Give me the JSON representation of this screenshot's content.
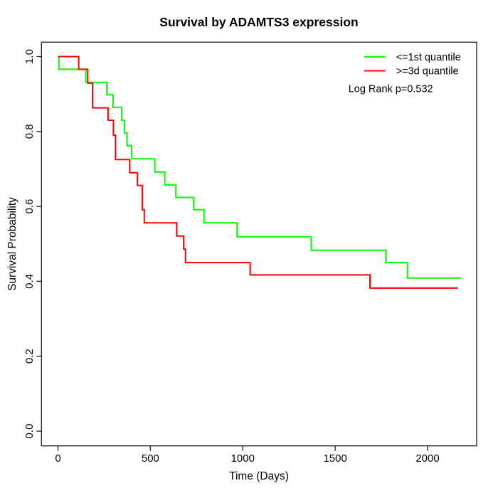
{
  "title": "Survival by ADAMTS3 expression",
  "x_axis": {
    "label": "Time (Days)",
    "tick_labels": [
      "0",
      "500",
      "1000",
      "1500",
      "2000"
    ]
  },
  "y_axis": {
    "label": "Survival Probability",
    "tick_labels": [
      "0.0",
      "0.2",
      "0.4",
      "0.6",
      "0.8",
      "1.0"
    ]
  },
  "legend": {
    "entries": [
      {
        "label": "<=1st quantile",
        "color": "#00ff00"
      },
      {
        "label": ">=3d quantile",
        "color": "#ff0000"
      }
    ],
    "stat_note": "Log Rank p=0.532"
  },
  "chart_data": {
    "type": "line",
    "variant": "kaplan-meier-step",
    "title": "Survival by ADAMTS3 expression",
    "xlabel": "Time (Days)",
    "ylabel": "Survival Probability",
    "xlim": [
      -90,
      2266
    ],
    "ylim": [
      -0.04,
      1.04
    ],
    "x_ticks": [
      0,
      500,
      1000,
      1500,
      2000
    ],
    "y_ticks": [
      0.0,
      0.2,
      0.4,
      0.6,
      0.8,
      1.0
    ],
    "grid": false,
    "legend_position": "top-right",
    "annotations": [
      "Log Rank p=0.532"
    ],
    "series": [
      {
        "name": "<=1st quantile",
        "color": "#00ff00",
        "line_width": 2,
        "steps": [
          [
            0,
            1.0
          ],
          [
            5,
            0.966
          ],
          [
            150,
            0.931
          ],
          [
            264,
            0.898
          ],
          [
            298,
            0.864
          ],
          [
            345,
            0.83
          ],
          [
            360,
            0.796
          ],
          [
            373,
            0.762
          ],
          [
            398,
            0.727
          ],
          [
            524,
            0.692
          ],
          [
            578,
            0.657
          ],
          [
            638,
            0.624
          ],
          [
            733,
            0.591
          ],
          [
            790,
            0.556
          ],
          [
            969,
            0.519
          ],
          [
            1370,
            0.483
          ],
          [
            1774,
            0.45
          ],
          [
            1891,
            0.409
          ]
        ],
        "end_time": 2182
      },
      {
        "name": ">=3d quantile",
        "color": "#ff0000",
        "line_width": 2,
        "steps": [
          [
            0,
            1.0
          ],
          [
            112,
            0.966
          ],
          [
            161,
            0.929
          ],
          [
            187,
            0.863
          ],
          [
            271,
            0.83
          ],
          [
            300,
            0.79
          ],
          [
            311,
            0.725
          ],
          [
            388,
            0.69
          ],
          [
            430,
            0.656
          ],
          [
            456,
            0.591
          ],
          [
            467,
            0.556
          ],
          [
            642,
            0.521
          ],
          [
            680,
            0.486
          ],
          [
            690,
            0.45
          ],
          [
            1040,
            0.417
          ],
          [
            1688,
            0.382
          ]
        ],
        "end_time": 2163
      }
    ]
  }
}
